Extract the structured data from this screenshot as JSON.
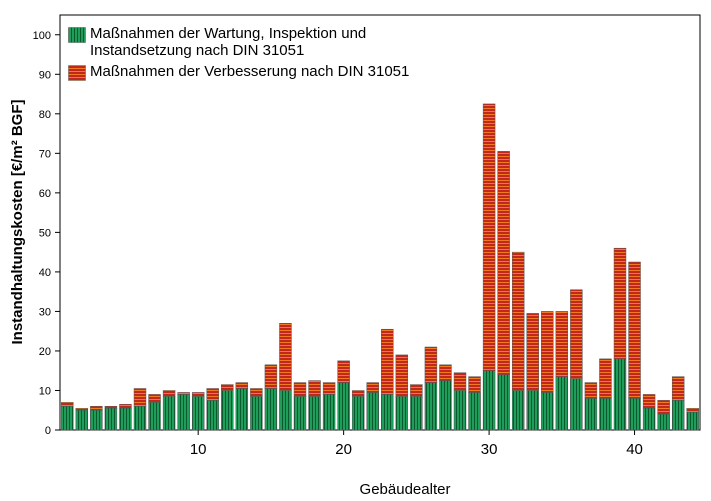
{
  "chart_data": {
    "type": "stacked_bar",
    "xlabel": "Gebäudealter",
    "ylabel": "Instandhaltungskosten [€/m² BGF]",
    "x": [
      1,
      2,
      3,
      4,
      5,
      6,
      7,
      8,
      9,
      10,
      11,
      12,
      13,
      14,
      15,
      16,
      17,
      18,
      19,
      20,
      21,
      22,
      23,
      24,
      25,
      26,
      27,
      28,
      29,
      30,
      31,
      32,
      33,
      34,
      35,
      36,
      37,
      38,
      39,
      40,
      41,
      42,
      43,
      44
    ],
    "series": [
      {
        "name": "Maßnahmen der Wartung, Inspektion und Instandsetzung nach DIN 31051",
        "color": "#1e9e5a",
        "values": [
          6,
          5,
          5,
          5.5,
          5.5,
          6,
          7,
          8.5,
          9,
          8.5,
          7.5,
          10,
          10.5,
          8.5,
          10.5,
          10,
          8.5,
          8.5,
          9,
          12,
          8.5,
          9.5,
          9,
          8.5,
          8.5,
          12,
          12.5,
          10,
          9.5,
          15,
          14,
          10,
          10,
          9.5,
          13.5,
          13,
          8,
          8,
          18,
          8,
          5.5,
          4,
          7.5,
          4.5
        ]
      },
      {
        "name": "Maßnahmen der Verbesserung nach DIN 31051",
        "color": "#c0281c",
        "values": [
          1,
          0.5,
          1,
          0.5,
          1,
          4.5,
          2,
          1.5,
          0.5,
          1,
          3,
          1.5,
          1.5,
          2,
          6,
          17,
          3.5,
          4,
          3,
          5.5,
          1.5,
          2.5,
          16.5,
          10.5,
          3,
          9,
          4,
          4.5,
          4,
          67.5,
          56.5,
          35,
          19.5,
          20.5,
          16.5,
          22.5,
          4,
          10,
          28,
          34.5,
          3.5,
          3.5,
          6,
          1
        ]
      }
    ],
    "xlim": [
      0.5,
      44.5
    ],
    "xticks": [
      10,
      20,
      30,
      40
    ],
    "ylim": [
      0,
      105
    ],
    "yticks": [
      0,
      10,
      20,
      30,
      40,
      50,
      60,
      70,
      80,
      90,
      100
    ],
    "legend": "upper left"
  }
}
